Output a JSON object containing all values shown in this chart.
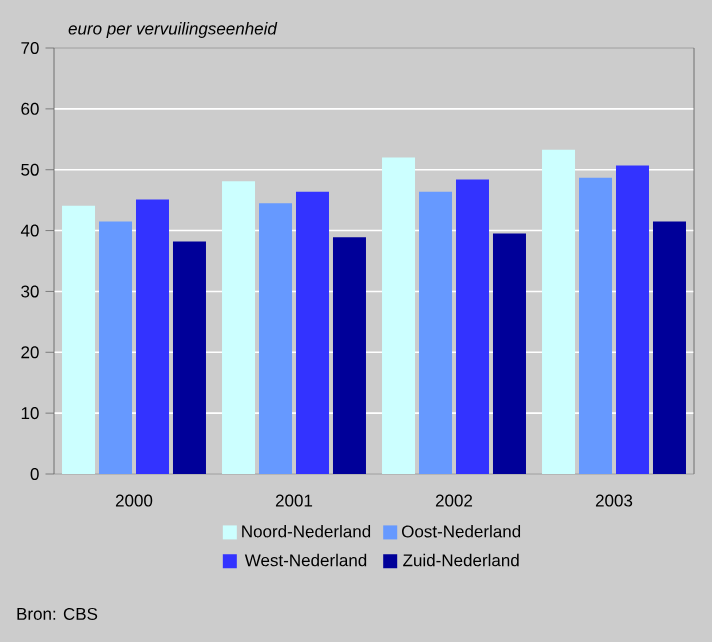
{
  "chart_data": {
    "type": "bar",
    "ylabel": "euro per vervuilingseenheid",
    "categories": [
      "2000",
      "2001",
      "2002",
      "2003"
    ],
    "series": [
      {
        "name": "Noord-Nederland",
        "color": "#ccffff",
        "values": [
          44.1,
          48.1,
          52.0,
          53.3
        ]
      },
      {
        "name": "Oost-Nederland",
        "color": "#6699ff",
        "values": [
          41.5,
          44.5,
          46.4,
          48.7
        ]
      },
      {
        "name": "West-Nederland",
        "color": "#3333ff",
        "values": [
          45.1,
          46.4,
          48.4,
          50.7
        ]
      },
      {
        "name": "Zuid-Nederland",
        "color": "#000099",
        "values": [
          38.2,
          38.9,
          39.5,
          41.5
        ]
      }
    ],
    "ylim": [
      0,
      70
    ],
    "yticks": [
      0,
      10,
      20,
      30,
      40,
      50,
      60,
      70
    ],
    "grid": "y",
    "legend": "bottom",
    "annotations": [
      "Bron: CBS"
    ]
  }
}
